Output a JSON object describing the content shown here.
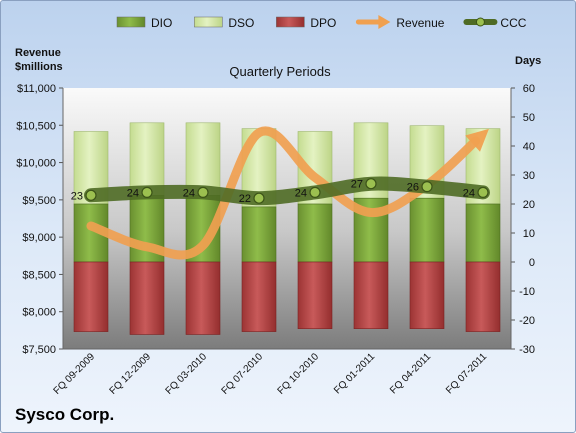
{
  "company": "Sysco Corp.",
  "chart_data": {
    "type": "bar",
    "title": "Quarterly Periods",
    "left_axis_title": [
      "Revenue",
      "$millions"
    ],
    "right_axis_title": "Days",
    "categories": [
      "FQ 09-2009",
      "FQ 12-2009",
      "FQ 03-2010",
      "FQ 07-2010",
      "FQ 10-2010",
      "FQ 01-2011",
      "FQ 04-2011",
      "FQ 07-2011"
    ],
    "left_ticks": [
      "$7,500",
      "$8,000",
      "$8,500",
      "$9,000",
      "$9,500",
      "$10,000",
      "$10,500",
      "$11,000"
    ],
    "right_ticks": [
      "-30",
      "-20",
      "-10",
      "0",
      "10",
      "20",
      "30",
      "40",
      "50",
      "60"
    ],
    "ylim_left": [
      7500,
      11000
    ],
    "ylim_right": [
      -30,
      60
    ],
    "series": [
      {
        "name": "DIO",
        "axis": "right",
        "kind": "stacked-bar",
        "color": "#7aa038",
        "values": [
          20,
          23,
          23,
          19,
          20,
          22,
          22,
          20
        ]
      },
      {
        "name": "DSO",
        "axis": "right",
        "kind": "stacked-bar",
        "color": "#d4e8a8",
        "values": [
          25,
          25,
          25,
          27,
          25,
          26,
          25,
          26
        ]
      },
      {
        "name": "DPO",
        "axis": "right",
        "kind": "bar-negative",
        "color": "#b84a4a",
        "values": [
          -24,
          -25,
          -25,
          -24,
          -23,
          -23,
          -23,
          -24
        ]
      },
      {
        "name": "Revenue",
        "axis": "left",
        "kind": "line-arrow",
        "color": "#f0a050",
        "values": [
          9150,
          8870,
          8890,
          10400,
          9800,
          9330,
          9700,
          10380
        ]
      },
      {
        "name": "CCC",
        "axis": "right",
        "kind": "line-labeled",
        "color": "#5c7a2e",
        "values": [
          23,
          24,
          24,
          22,
          24,
          27,
          26,
          24
        ]
      }
    ],
    "legend": {
      "position": "top",
      "items": [
        {
          "name": "DIO",
          "marker": "bar",
          "color": "#7aa038"
        },
        {
          "name": "DSO",
          "marker": "bar",
          "color": "#d4e8a8"
        },
        {
          "name": "DPO",
          "marker": "bar",
          "color": "#b84a4a"
        },
        {
          "name": "Revenue",
          "marker": "arrow",
          "color": "#f0a050"
        },
        {
          "name": "CCC",
          "marker": "line-dot",
          "color": "#5c7a2e"
        }
      ]
    },
    "grid": false
  }
}
